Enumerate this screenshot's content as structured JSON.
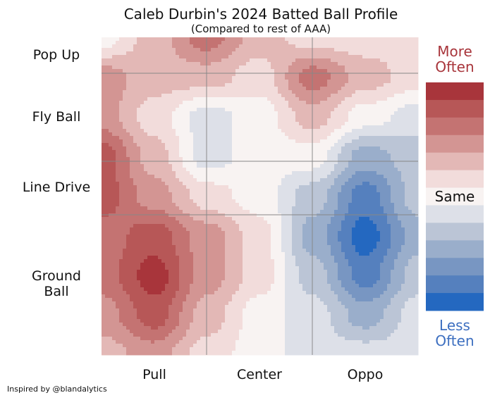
{
  "chart_data": {
    "type": "heatmap",
    "title": "Caleb Durbin's 2024 Batted Ball Profile",
    "subtitle": "(Compared to rest of AAA)",
    "x_categories": [
      "Pull",
      "Center",
      "Oppo"
    ],
    "y_categories": [
      "Pop Up",
      "Fly Ball",
      "Line Drive",
      "Ground Ball"
    ],
    "grid": true,
    "legend": {
      "placement": "right",
      "top_label": "More Often",
      "middle_label": "Same",
      "bottom_label": "Less Often",
      "levels": [
        6,
        5,
        4,
        3,
        2,
        1,
        0,
        -1,
        -2,
        -3,
        -4,
        -5,
        -6
      ],
      "colors": [
        "#a8353b",
        "#b75757",
        "#c47372",
        "#d39593",
        "#e3b8b6",
        "#f2dcdb",
        "#f8f3f2",
        "#dde0e8",
        "#bbc5d6",
        "#9aaecb",
        "#7896c2",
        "#5580be",
        "#2468c0"
      ]
    },
    "z": [
      [
        0,
        2,
        4,
        2,
        1,
        1,
        1
      ],
      [
        3,
        2,
        2,
        1,
        4,
        2,
        1
      ],
      [
        3,
        1,
        -1,
        0,
        2,
        0,
        -1
      ],
      [
        5,
        2,
        -1,
        0,
        0,
        -3,
        -2
      ],
      [
        5,
        3,
        1,
        0,
        -2,
        -5,
        -2
      ],
      [
        4,
        5,
        3,
        1,
        -3,
        -6,
        -3
      ],
      [
        4,
        6,
        3,
        1,
        -2,
        -5,
        -2
      ],
      [
        3,
        5,
        2,
        0,
        -1,
        -3,
        -1
      ],
      [
        2,
        3,
        1,
        0,
        -1,
        -1,
        -1
      ]
    ]
  },
  "labels": {
    "pop_up": "Pop Up",
    "fly_ball": "Fly Ball",
    "line_drive": "Line Drive",
    "ground_ball": "Ground Ball",
    "pull": "Pull",
    "center": "Center",
    "oppo": "Oppo",
    "more_often": "More Often",
    "same": "Same",
    "less_often": "Less Often",
    "credit": "Inspired by @blandalytics"
  }
}
